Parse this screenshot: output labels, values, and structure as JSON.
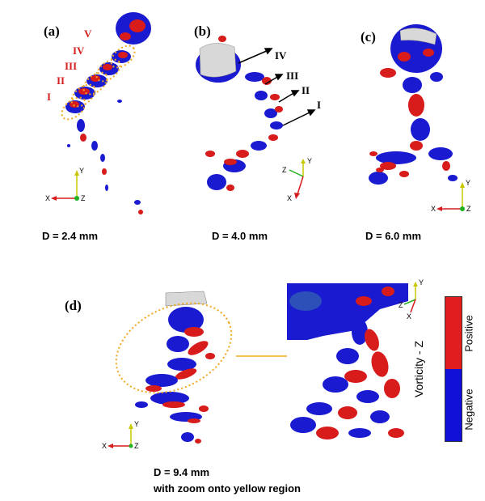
{
  "panels": {
    "a": {
      "label": "(a)",
      "caption": "D = 2.4 mm",
      "numerals": [
        "V",
        "IV",
        "III",
        "II",
        "I"
      ]
    },
    "b": {
      "label": "(b)",
      "caption": "D = 4.0 mm",
      "numerals": [
        "IV",
        "III",
        "II",
        "I"
      ]
    },
    "c": {
      "label": "(c)",
      "caption": "D = 6.0 mm"
    },
    "d": {
      "label": "(d)",
      "caption": "D = 9.4 mm",
      "subcaption": "with zoom onto yellow region"
    }
  },
  "axes": {
    "x": "X",
    "y": "Y",
    "z": "Z"
  },
  "legend": {
    "title": "Vorticity - Z",
    "positive": "Positive",
    "negative": "Negative",
    "positive_color": "#e11d1d",
    "negative_color": "#1010d8"
  },
  "colors": {
    "positive": "#d81b1b",
    "negative": "#1a1ad0",
    "highlight": "#f0a820",
    "surface": "#d8d8d8"
  }
}
